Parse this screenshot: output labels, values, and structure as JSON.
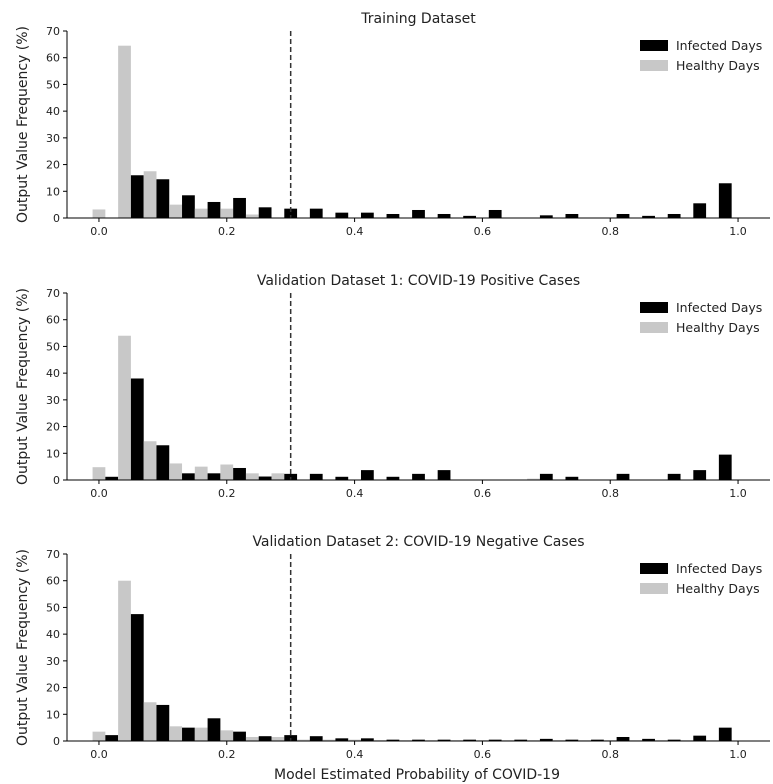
{
  "xlabel": "Model Estimated Probability of COVID-19",
  "ylabel": "Output Value Frequency (%)",
  "colors": {
    "infected": "#000000",
    "healthy": "#c8c8c8",
    "threshold": "#333333"
  },
  "chart_data": [
    {
      "type": "bar",
      "title": "Training Dataset",
      "bin_centers": [
        0.01,
        0.05,
        0.09,
        0.13,
        0.17,
        0.21,
        0.25,
        0.29,
        0.33,
        0.37,
        0.41,
        0.45,
        0.49,
        0.53,
        0.57,
        0.61,
        0.65,
        0.69,
        0.73,
        0.77,
        0.81,
        0.85,
        0.89,
        0.93,
        0.97,
        1.01
      ],
      "series": [
        {
          "name": "Infected Days",
          "values": [
            0,
            16,
            14.5,
            8.5,
            6,
            7.5,
            4,
            3.5,
            3.5,
            2,
            2,
            1.5,
            3,
            1.5,
            0.8,
            3,
            0,
            1,
            1.5,
            0,
            1.5,
            0.8,
            1.5,
            5.5,
            13,
            0
          ]
        },
        {
          "name": "Healthy Days",
          "values": [
            3.2,
            64.5,
            17.5,
            5,
            3.5,
            3.5,
            1.3,
            0,
            0,
            0,
            0,
            0,
            0,
            0,
            0,
            0,
            0,
            0,
            0,
            0,
            0,
            0,
            0,
            0,
            0,
            0
          ]
        }
      ],
      "threshold": 0.3,
      "xlim": [
        -0.05,
        1.05
      ],
      "ylim": [
        0,
        70
      ],
      "xticks": [
        0.0,
        0.2,
        0.4,
        0.6,
        0.8,
        1.0
      ],
      "xtick_labels": [
        "0.0",
        "0.2",
        "0.4",
        "0.6",
        "0.8",
        "1.0"
      ],
      "yticks": [
        0,
        10,
        20,
        30,
        40,
        50,
        60,
        70
      ],
      "legend": "top-right"
    },
    {
      "type": "bar",
      "title": "Validation Dataset 1: COVID-19 Positive Cases",
      "bin_centers": [
        0.01,
        0.05,
        0.09,
        0.13,
        0.17,
        0.21,
        0.25,
        0.29,
        0.33,
        0.37,
        0.41,
        0.45,
        0.49,
        0.53,
        0.57,
        0.61,
        0.65,
        0.69,
        0.73,
        0.77,
        0.81,
        0.85,
        0.89,
        0.93,
        0.97,
        1.01
      ],
      "series": [
        {
          "name": "Infected Days",
          "values": [
            1.2,
            38,
            13,
            2.5,
            2.5,
            4.5,
            1.3,
            2.3,
            2.3,
            1.2,
            3.7,
            1.2,
            2.3,
            3.7,
            0,
            0,
            0,
            2.3,
            1.2,
            0,
            2.3,
            0,
            2.3,
            3.7,
            9.5,
            0
          ]
        },
        {
          "name": "Healthy Days",
          "values": [
            4.8,
            54,
            14.5,
            6.2,
            5,
            5.8,
            2.5,
            2.5,
            0,
            0,
            0,
            0,
            0,
            0,
            0,
            0,
            0,
            0.5,
            0,
            0,
            0,
            0,
            0,
            0,
            0,
            0
          ]
        }
      ],
      "threshold": 0.3,
      "xlim": [
        -0.05,
        1.05
      ],
      "ylim": [
        0,
        70
      ],
      "xticks": [
        0.0,
        0.2,
        0.4,
        0.6,
        0.8,
        1.0
      ],
      "xtick_labels": [
        "0.0",
        "0.2",
        "0.4",
        "0.6",
        "0.8",
        "1.0"
      ],
      "yticks": [
        0,
        10,
        20,
        30,
        40,
        50,
        60,
        70
      ],
      "legend": "top-right"
    },
    {
      "type": "bar",
      "title": "Validation Dataset 2: COVID-19 Negative Cases",
      "bin_centers": [
        0.01,
        0.05,
        0.09,
        0.13,
        0.17,
        0.21,
        0.25,
        0.29,
        0.33,
        0.37,
        0.41,
        0.45,
        0.49,
        0.53,
        0.57,
        0.61,
        0.65,
        0.69,
        0.73,
        0.77,
        0.81,
        0.85,
        0.89,
        0.93,
        0.97,
        1.01
      ],
      "series": [
        {
          "name": "Infected Days",
          "values": [
            2.2,
            47.5,
            13.5,
            5,
            8.5,
            3.5,
            1.8,
            2.2,
            1.8,
            1,
            1,
            0.5,
            0.5,
            0.5,
            0.5,
            0.5,
            0.5,
            0.8,
            0.5,
            0.5,
            1.5,
            0.8,
            0.5,
            2,
            5,
            0
          ]
        },
        {
          "name": "Healthy Days",
          "values": [
            3.5,
            60,
            14.5,
            5.5,
            5,
            4,
            1.5,
            1.5,
            0.5,
            0.5,
            0.5,
            0.3,
            0.3,
            0.3,
            0.3,
            0.3,
            0.3,
            0.3,
            0.3,
            0.3,
            0.3,
            0.3,
            0.3,
            0.3,
            0.3,
            0
          ]
        }
      ],
      "threshold": 0.3,
      "xlim": [
        -0.05,
        1.05
      ],
      "ylim": [
        0,
        70
      ],
      "xticks": [
        0.0,
        0.2,
        0.4,
        0.6,
        0.8,
        1.0
      ],
      "xtick_labels": [
        "0.0",
        "0.2",
        "0.4",
        "0.6",
        "0.8",
        "1.0"
      ],
      "yticks": [
        0,
        10,
        20,
        30,
        40,
        50,
        60,
        70
      ],
      "legend": "top-right"
    }
  ]
}
